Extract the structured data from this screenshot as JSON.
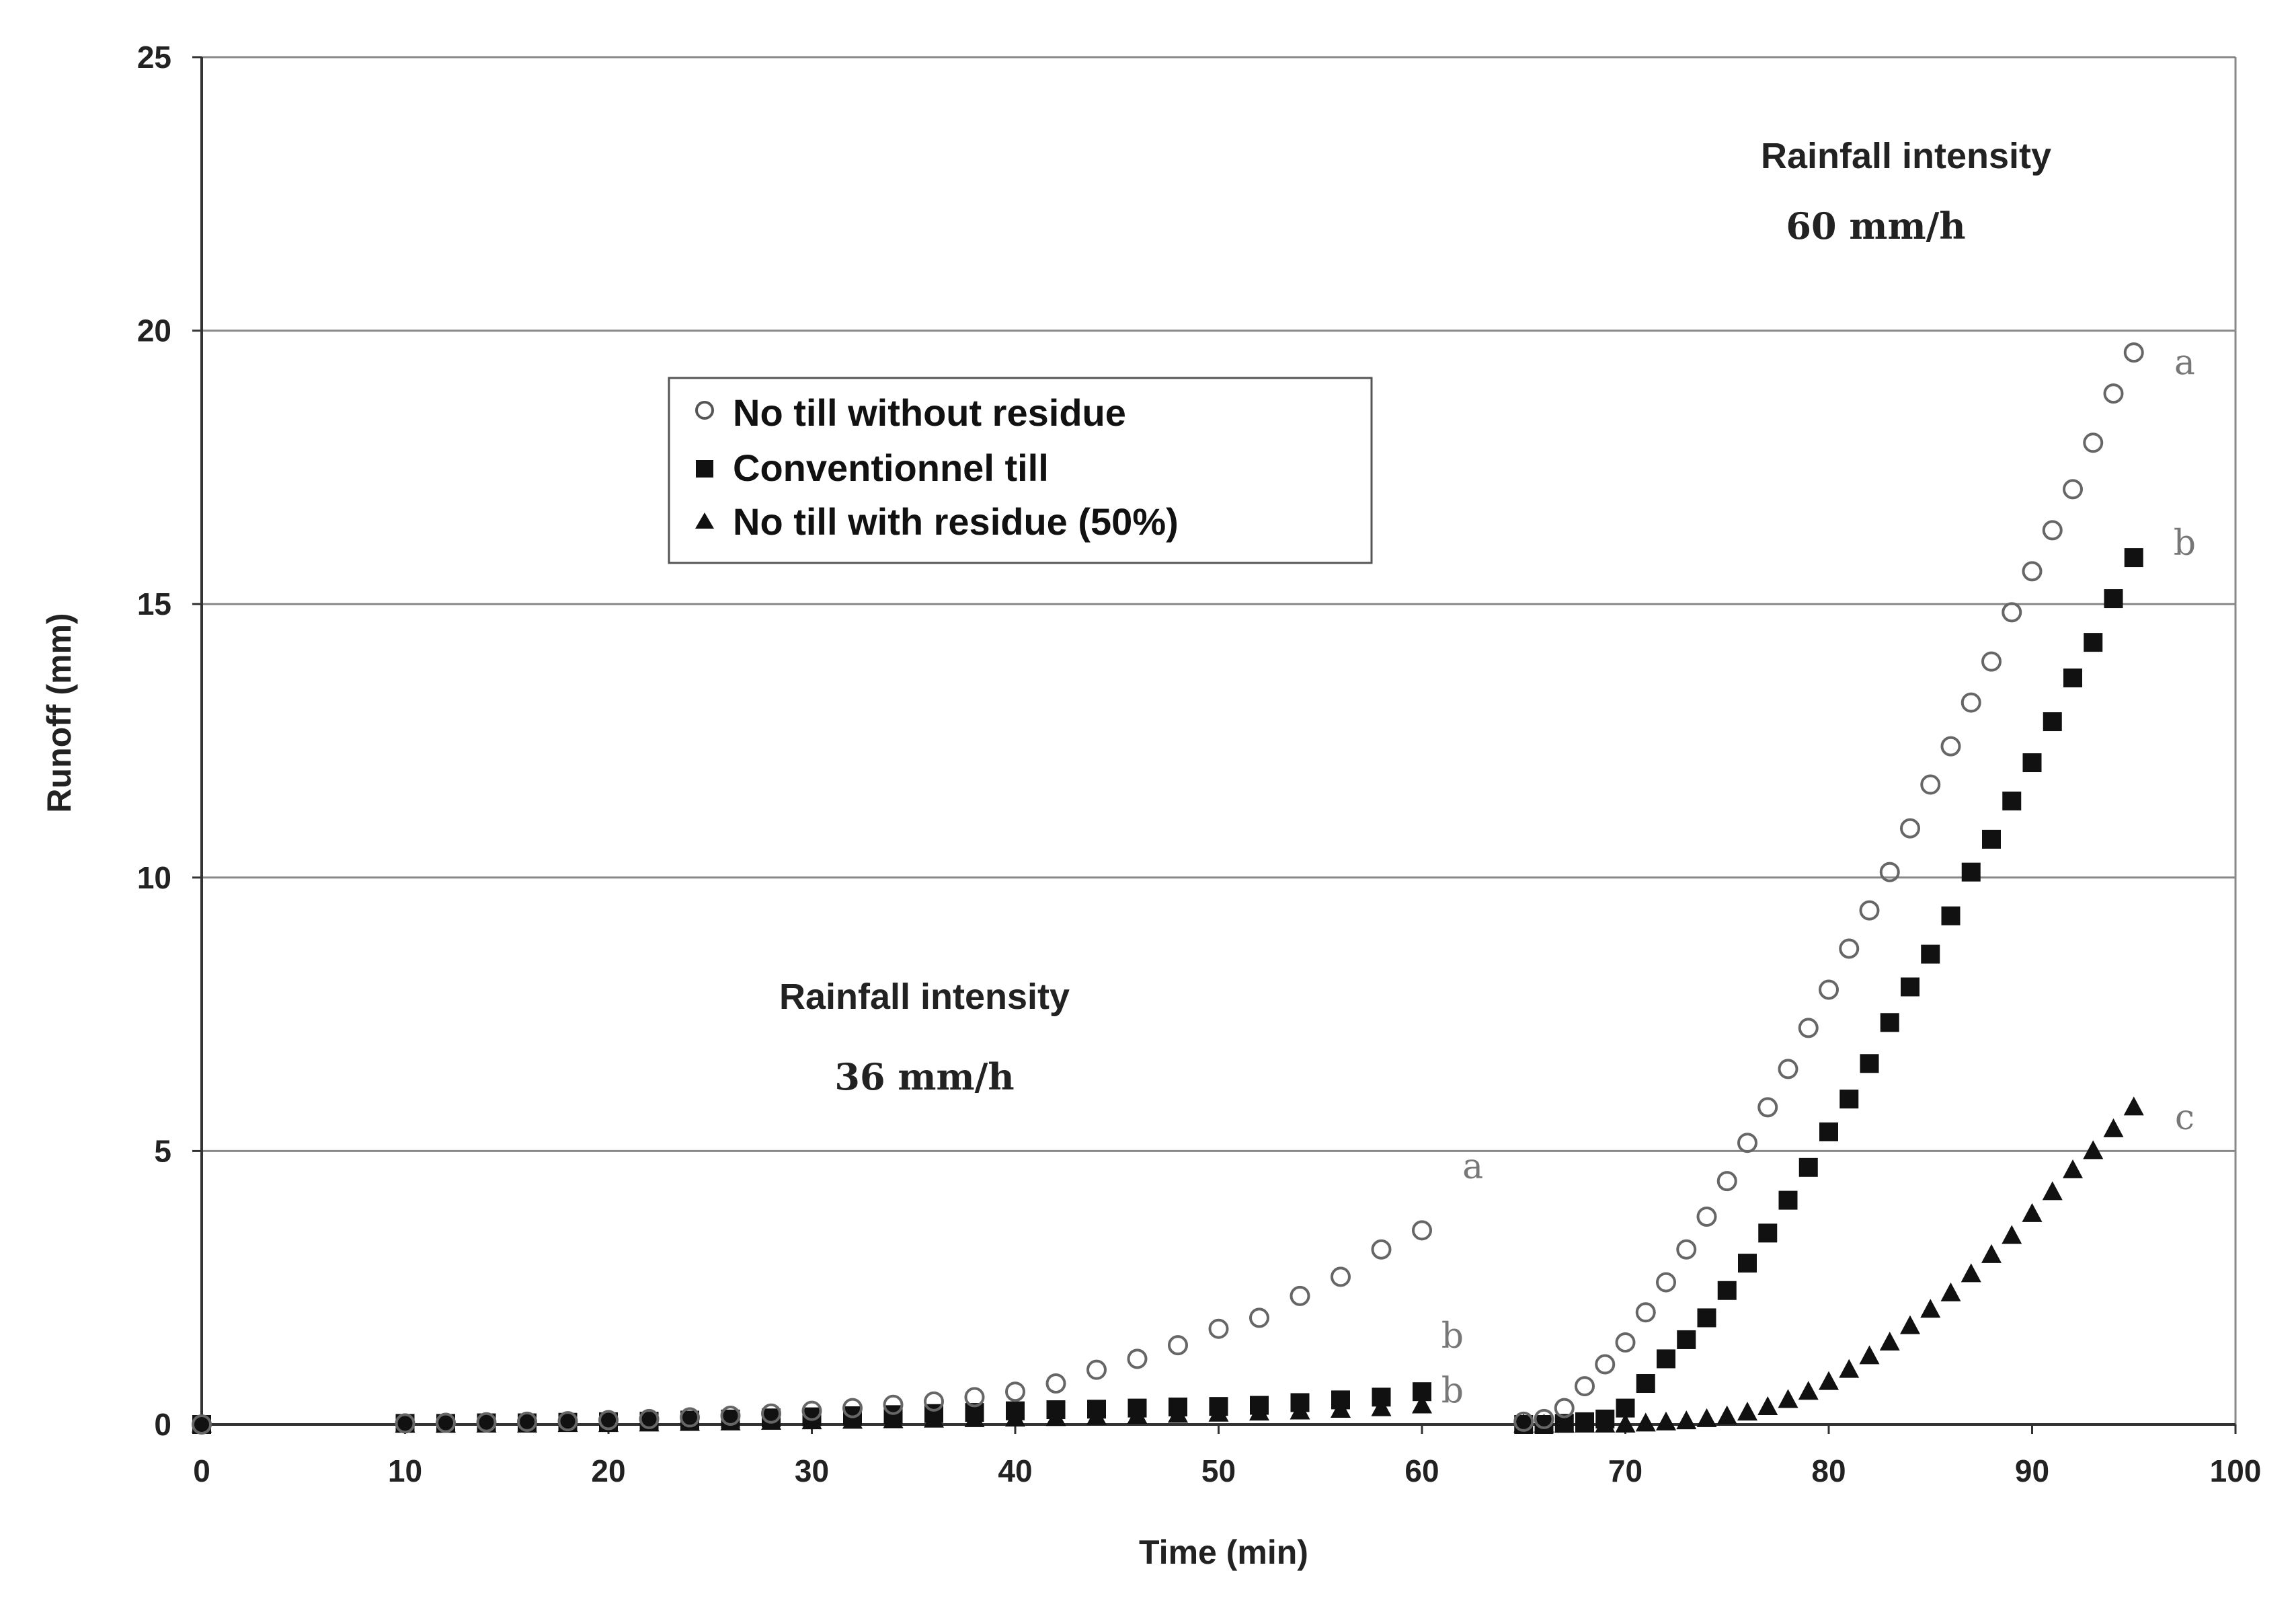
{
  "chart_data": {
    "type": "scatter",
    "title": "",
    "xlabel": "Time  (min)",
    "ylabel": "Runoff  (mm)",
    "xlim": [
      0,
      100
    ],
    "ylim": [
      0,
      25
    ],
    "xticks": [
      "0",
      "10",
      "20",
      "30",
      "40",
      "50",
      "60",
      "70",
      "80",
      "90",
      "100"
    ],
    "yticks": [
      "0",
      "5",
      "10",
      "15",
      "20",
      "25"
    ],
    "grid": "horizontal",
    "legend_position": "upper-left",
    "annotations": [
      {
        "label": "Rainfall intensity",
        "value": "60 mm/h",
        "x": 84,
        "y": 23
      },
      {
        "label": "Rainfall intensity",
        "value": "36 mm/h",
        "x": 36,
        "y": 7.8
      }
    ],
    "series": [
      {
        "name": "No till without residue",
        "marker": "open-circle",
        "phase1": {
          "x": [
            0,
            10,
            12,
            14,
            16,
            18,
            20,
            22,
            24,
            26,
            28,
            30,
            32,
            34,
            36,
            38,
            40,
            42,
            44,
            46,
            48,
            50,
            52,
            54,
            56,
            58,
            60
          ],
          "y": [
            0,
            0.02,
            0.03,
            0.04,
            0.05,
            0.06,
            0.08,
            0.1,
            0.13,
            0.16,
            0.2,
            0.25,
            0.3,
            0.36,
            0.42,
            0.5,
            0.6,
            0.75,
            1.0,
            1.2,
            1.45,
            1.75,
            1.95,
            2.35,
            2.7,
            3.2,
            3.55
          ]
        },
        "phase2": {
          "x": [
            65,
            66,
            67,
            68,
            69,
            70,
            71,
            72,
            73,
            74,
            75,
            76,
            77,
            78,
            79,
            80,
            81,
            82,
            83,
            84,
            85,
            86,
            87,
            88,
            89,
            90,
            91,
            92,
            93,
            94,
            95
          ],
          "y": [
            0.05,
            0.1,
            0.3,
            0.7,
            1.1,
            1.5,
            2.05,
            2.6,
            3.2,
            3.8,
            4.45,
            5.15,
            5.8,
            6.5,
            7.25,
            7.95,
            8.7,
            9.4,
            10.1,
            10.9,
            11.7,
            12.4,
            13.2,
            13.95,
            14.85,
            15.6,
            16.35,
            17.1,
            17.95,
            18.85,
            19.6
          ]
        },
        "end_labels": [
          "a",
          "a"
        ]
      },
      {
        "name": "Conventionnel till",
        "marker": "filled-square",
        "phase1": {
          "x": [
            0,
            10,
            12,
            14,
            16,
            18,
            20,
            22,
            24,
            26,
            28,
            30,
            32,
            34,
            36,
            38,
            40,
            42,
            44,
            46,
            48,
            50,
            52,
            54,
            56,
            58,
            60
          ],
          "y": [
            0,
            0.02,
            0.02,
            0.03,
            0.03,
            0.04,
            0.05,
            0.06,
            0.08,
            0.1,
            0.12,
            0.14,
            0.16,
            0.18,
            0.2,
            0.22,
            0.25,
            0.27,
            0.28,
            0.3,
            0.32,
            0.33,
            0.35,
            0.4,
            0.45,
            0.5,
            0.6
          ]
        },
        "phase2": {
          "x": [
            65,
            66,
            67,
            68,
            69,
            70,
            71,
            72,
            73,
            74,
            75,
            76,
            77,
            78,
            79,
            80,
            81,
            82,
            83,
            84,
            85,
            86,
            87,
            88,
            89,
            90,
            91,
            92,
            93,
            94,
            95
          ],
          "y": [
            0,
            0,
            0.02,
            0.05,
            0.1,
            0.3,
            0.75,
            1.2,
            1.55,
            1.95,
            2.45,
            2.95,
            3.5,
            4.1,
            4.7,
            5.35,
            5.95,
            6.6,
            7.35,
            8.0,
            8.6,
            9.3,
            10.1,
            10.7,
            11.4,
            12.1,
            12.85,
            13.65,
            14.3,
            15.1,
            15.85
          ]
        },
        "end_labels": [
          "b",
          "b"
        ]
      },
      {
        "name": "No till with residue (50%)",
        "marker": "filled-triangle",
        "phase1": {
          "x": [
            0,
            10,
            12,
            14,
            16,
            18,
            20,
            22,
            24,
            26,
            28,
            30,
            32,
            34,
            36,
            38,
            40,
            42,
            44,
            46,
            48,
            50,
            52,
            54,
            56,
            58,
            60
          ],
          "y": [
            0,
            0,
            0,
            0,
            0,
            0.01,
            0.01,
            0.02,
            0.03,
            0.04,
            0.05,
            0.06,
            0.07,
            0.08,
            0.09,
            0.1,
            0.11,
            0.12,
            0.14,
            0.16,
            0.18,
            0.2,
            0.22,
            0.24,
            0.27,
            0.3,
            0.35
          ]
        },
        "phase2": {
          "x": [
            65,
            66,
            67,
            68,
            69,
            70,
            71,
            72,
            73,
            74,
            75,
            76,
            77,
            78,
            79,
            80,
            81,
            82,
            83,
            84,
            85,
            86,
            87,
            88,
            89,
            90,
            91,
            92,
            93,
            94,
            95
          ],
          "y": [
            0,
            0,
            0,
            0,
            0,
            0,
            0.02,
            0.04,
            0.06,
            0.1,
            0.15,
            0.22,
            0.32,
            0.45,
            0.6,
            0.78,
            1.0,
            1.25,
            1.5,
            1.8,
            2.1,
            2.4,
            2.75,
            3.1,
            3.45,
            3.85,
            4.25,
            4.65,
            5.0,
            5.4,
            5.8
          ]
        },
        "end_labels": [
          "b",
          "c"
        ]
      }
    ]
  }
}
